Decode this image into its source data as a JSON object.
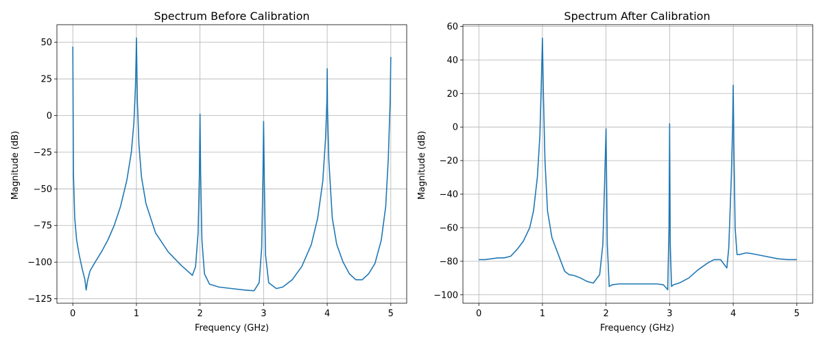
{
  "chart_data": [
    {
      "type": "line",
      "title": "Spectrum Before Calibration",
      "xlabel": "Frequency (GHz)",
      "ylabel": "Magnitude (dB)",
      "xlim": [
        -0.25,
        5.25
      ],
      "ylim": [
        -128,
        62
      ],
      "xticks": [
        0,
        1,
        2,
        3,
        4,
        5
      ],
      "xtick_labels": [
        "0",
        "1",
        "2",
        "3",
        "4",
        "5"
      ],
      "yticks": [
        50,
        25,
        0,
        -25,
        -50,
        -75,
        -100,
        -125
      ],
      "ytick_labels": [
        "50",
        "25",
        "0",
        "−25",
        "−50",
        "−75",
        "−100",
        "−125"
      ],
      "grid": true,
      "line_color": "#1f77b4",
      "series": [
        {
          "x": [
            0,
            0.01,
            0.03,
            0.06,
            0.1,
            0.15,
            0.19,
            0.21,
            0.23,
            0.27,
            0.35,
            0.45,
            0.55,
            0.65,
            0.75,
            0.85,
            0.92,
            0.96,
            0.985,
            0.995,
            1.0,
            1.005,
            1.015,
            1.04,
            1.08,
            1.15,
            1.3,
            1.5,
            1.7,
            1.88,
            1.93,
            1.97,
            1.99,
            2.0,
            2.01,
            2.03,
            2.07,
            2.15,
            2.3,
            2.5,
            2.7,
            2.85,
            2.93,
            2.97,
            2.99,
            3.0,
            3.01,
            3.03,
            3.08,
            3.2,
            3.3,
            3.45,
            3.6,
            3.75,
            3.85,
            3.93,
            3.975,
            3.995,
            4.0,
            4.005,
            4.025,
            4.08,
            4.15,
            4.25,
            4.35,
            4.45,
            4.55,
            4.65,
            4.75,
            4.85,
            4.92,
            4.96,
            4.99,
            5.0
          ],
          "y": [
            47,
            -40,
            -70,
            -85,
            -95,
            -105,
            -112,
            -119,
            -113,
            -106,
            -100,
            -93,
            -85,
            -75,
            -62,
            -44,
            -25,
            -5,
            20,
            40,
            53,
            40,
            10,
            -20,
            -42,
            -60,
            -80,
            -93,
            -102,
            -109,
            -103,
            -80,
            -40,
            1,
            -40,
            -85,
            -108,
            -115,
            -117,
            -118,
            -119,
            -119.5,
            -114,
            -90,
            -40,
            -4,
            -40,
            -95,
            -114,
            -118,
            -117,
            -112,
            -103,
            -88,
            -70,
            -45,
            -15,
            10,
            32,
            5,
            -30,
            -70,
            -88,
            -100,
            -108,
            -112,
            -112,
            -108,
            -101,
            -85,
            -62,
            -30,
            10,
            40
          ]
        }
      ]
    },
    {
      "type": "line",
      "title": "Spectrum After Calibration",
      "xlabel": "Frequency (GHz)",
      "ylabel": "Magnitude (dB)",
      "xlim": [
        -0.25,
        5.25
      ],
      "ylim": [
        -105,
        61
      ],
      "xticks": [
        0,
        1,
        2,
        3,
        4,
        5
      ],
      "xtick_labels": [
        "0",
        "1",
        "2",
        "3",
        "4",
        "5"
      ],
      "yticks": [
        60,
        40,
        20,
        0,
        -20,
        -40,
        -60,
        -80,
        -100
      ],
      "ytick_labels": [
        "60",
        "40",
        "20",
        "0",
        "−20",
        "−40",
        "−60",
        "−80",
        "−100"
      ],
      "grid": true,
      "line_color": "#1f77b4",
      "series": [
        {
          "x": [
            0,
            0.1,
            0.2,
            0.3,
            0.4,
            0.5,
            0.6,
            0.7,
            0.8,
            0.86,
            0.92,
            0.96,
            0.985,
            1.0,
            1.015,
            1.04,
            1.08,
            1.15,
            1.25,
            1.35,
            1.42,
            1.5,
            1.6,
            1.7,
            1.8,
            1.9,
            1.95,
            1.98,
            2.0,
            2.02,
            2.05,
            2.1,
            2.2,
            2.4,
            2.6,
            2.8,
            2.9,
            2.95,
            2.97,
            2.99,
            3.0,
            3.01,
            3.03,
            3.06,
            3.15,
            3.3,
            3.45,
            3.6,
            3.7,
            3.8,
            3.86,
            3.9,
            3.93,
            3.97,
            3.99,
            4.0,
            4.01,
            4.03,
            4.06,
            4.1,
            4.2,
            4.3,
            4.5,
            4.7,
            4.85,
            5.0
          ],
          "y": [
            -79,
            -79,
            -78.5,
            -78,
            -78,
            -77,
            -73,
            -68,
            -60,
            -50,
            -30,
            -5,
            30,
            53,
            20,
            -20,
            -50,
            -66,
            -76,
            -86,
            -88,
            -88.5,
            -90,
            -92,
            -93,
            -88,
            -70,
            -30,
            -1,
            -70,
            -95,
            -94,
            -93.5,
            -93.5,
            -93.5,
            -93.5,
            -94,
            -96,
            -97,
            -60,
            2,
            -70,
            -95,
            -94,
            -93,
            -90,
            -85,
            -81,
            -79,
            -79,
            -82,
            -84,
            -72,
            -30,
            0,
            25,
            -10,
            -60,
            -76,
            -76,
            -75,
            -75.5,
            -77,
            -78.5,
            -79,
            -79
          ]
        }
      ]
    }
  ]
}
